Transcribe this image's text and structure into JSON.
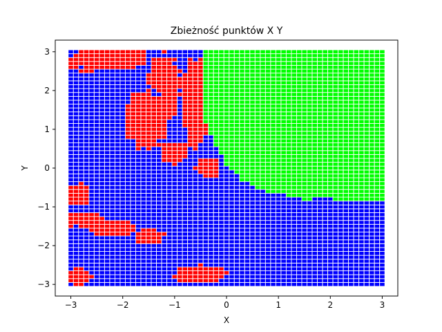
{
  "chart_data": {
    "type": "scatter",
    "title": "Zbieżność punktów X Y",
    "xlabel": "X",
    "ylabel": "Y",
    "xlim": [
      -3.3,
      3.3
    ],
    "ylim": [
      -3.3,
      3.3
    ],
    "x_ticks": [
      -3,
      -2,
      -1,
      0,
      1,
      2,
      3
    ],
    "y_ticks": [
      -3,
      -2,
      -1,
      0,
      1,
      2,
      3
    ],
    "x_tick_labels": [
      "−3",
      "−2",
      "−1",
      "0",
      "1",
      "2",
      "3"
    ],
    "y_tick_labels": [
      "−3",
      "−2",
      "−1",
      "0",
      "1",
      "2",
      "3"
    ],
    "grid_range": [
      -3,
      3
    ],
    "grid_points_per_axis": 61,
    "marker": "square",
    "grid": false,
    "legend": "none",
    "series": [
      {
        "color": "#0000ff",
        "region": "remaining points (default)"
      },
      {
        "color": "#ff0000",
        "region": "top-left block, central fingers and lower-left patches",
        "blobs": [
          {
            "cx": -2.3,
            "cy": 2.85,
            "rx": 0.8,
            "ry": 0.35
          },
          {
            "cx": -2.75,
            "cy": 2.75,
            "rx": 0.3,
            "ry": 0.3
          },
          {
            "cx": -1.55,
            "cy": 1.25,
            "rx": 0.45,
            "ry": 0.8
          },
          {
            "cx": -1.2,
            "cy": 2.1,
            "rx": 0.35,
            "ry": 0.9
          },
          {
            "cx": -0.6,
            "cy": 1.7,
            "rx": 0.3,
            "ry": 1.2
          },
          {
            "cx": -1.0,
            "cy": 0.4,
            "rx": 0.3,
            "ry": 0.3
          },
          {
            "cx": -0.35,
            "cy": 0.0,
            "rx": 0.25,
            "ry": 0.3
          },
          {
            "cx": -2.85,
            "cy": -0.7,
            "rx": 0.25,
            "ry": 0.35
          },
          {
            "cx": -2.75,
            "cy": -1.35,
            "rx": 0.4,
            "ry": 0.2
          },
          {
            "cx": -2.15,
            "cy": -1.55,
            "rx": 0.5,
            "ry": 0.25
          },
          {
            "cx": -1.5,
            "cy": -1.75,
            "rx": 0.35,
            "ry": 0.2
          },
          {
            "cx": -2.85,
            "cy": -2.8,
            "rx": 0.25,
            "ry": 0.25
          },
          {
            "cx": -0.5,
            "cy": -2.75,
            "rx": 0.6,
            "ry": 0.25
          }
        ]
      },
      {
        "color": "#00ff00",
        "region": "upper-right quadrant",
        "left_boundary_x": -0.42,
        "lower_boundary": [
          {
            "x": -0.42,
            "y": 1.2
          },
          {
            "x": -0.2,
            "y": 0.6
          },
          {
            "x": 0.0,
            "y": 0.1
          },
          {
            "x": 0.3,
            "y": -0.3
          },
          {
            "x": 0.7,
            "y": -0.58
          },
          {
            "x": 1.2,
            "y": -0.7
          },
          {
            "x": 1.5,
            "y": -0.82
          },
          {
            "x": 2.0,
            "y": -0.76
          },
          {
            "x": 2.2,
            "y": -0.85
          },
          {
            "x": 3.0,
            "y": -0.85
          }
        ]
      }
    ]
  }
}
